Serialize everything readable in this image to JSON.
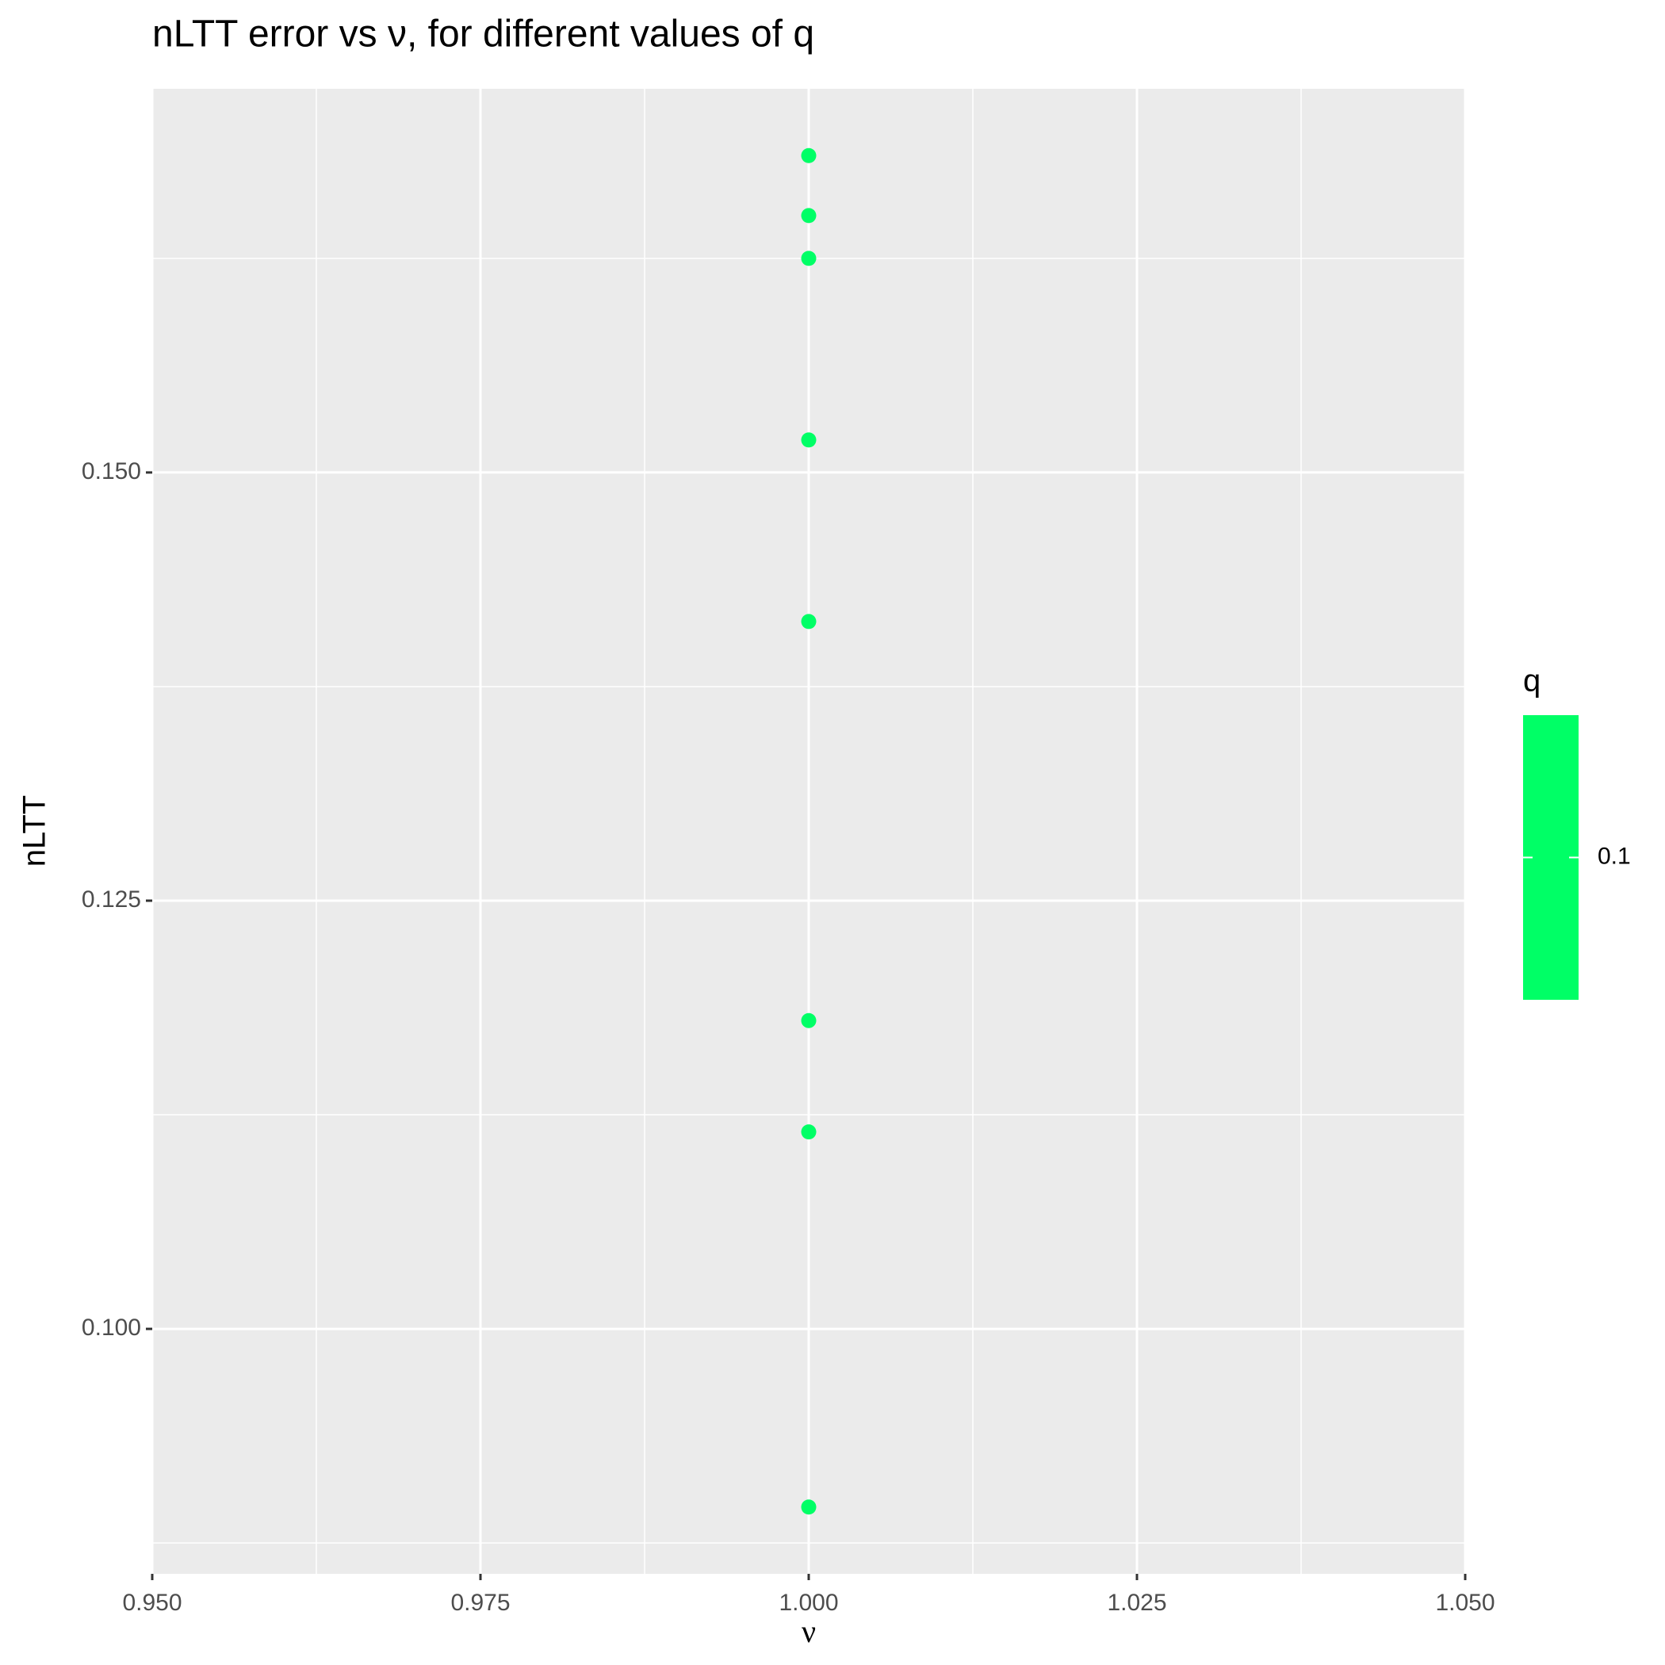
{
  "chart_data": {
    "type": "scatter",
    "title": "nLTT error vs ν, for different values of q",
    "x_label": "ν",
    "y_label": "nLTT",
    "x": [
      1,
      1,
      1,
      1,
      1,
      1,
      1,
      1
    ],
    "series": [
      {
        "color": "#00ff66",
        "values": [
          0.1685,
          0.165,
          0.1625,
          0.1519,
          0.1413,
          0.118,
          0.1115,
          0.0896
        ]
      }
    ],
    "xlim": [
      0.95,
      1.05
    ],
    "xticks": [
      {
        "value": 0.95,
        "label": "0.950"
      },
      {
        "value": 0.975,
        "label": "0.975"
      },
      {
        "value": 1,
        "label": "1.000"
      },
      {
        "value": 1.025,
        "label": "1.025"
      },
      {
        "value": 1.05,
        "label": "1.050"
      }
    ],
    "minor_xticks": [
      0.9625,
      0.9875,
      1.0125,
      1.0375
    ],
    "ylim": [
      0.0857,
      0.1724
    ],
    "yticks": [
      {
        "value": 0.1,
        "label": "0.100"
      },
      {
        "value": 0.125,
        "label": "0.125"
      },
      {
        "value": 0.15,
        "label": "0.150"
      }
    ],
    "minor_yticks": [
      0.0875,
      0.1125,
      0.1375,
      0.1625
    ],
    "grid": true,
    "legend": {
      "title": "q",
      "ticks": [
        0.1
      ],
      "color": "#00ff66",
      "position": "right"
    }
  }
}
